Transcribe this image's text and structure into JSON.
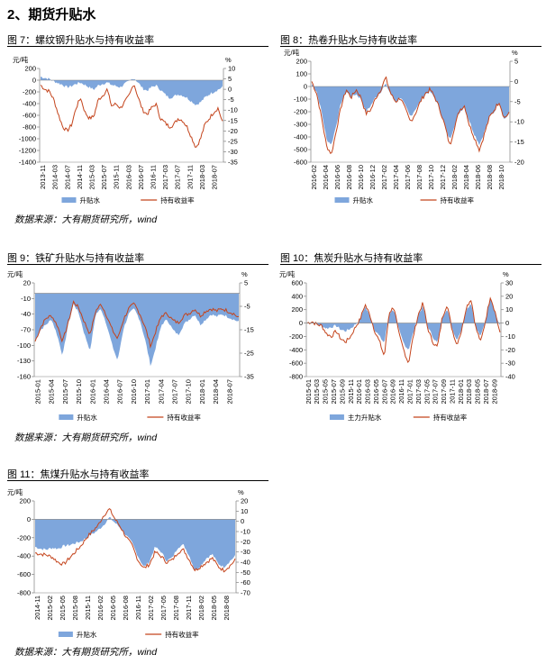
{
  "section_title": "2、期货升贴水",
  "colors": {
    "basis": "#7ea6dc",
    "yield": "#c4441c",
    "axis": "#808080"
  },
  "panels": [
    {
      "title": "图 7：螺纹钢升贴水与持有收益率",
      "source": "数据来源：大有期货研究所，wind"
    },
    {
      "title": "图 8：热卷升贴水与持有收益率"
    },
    {
      "title": "图 9：铁矿升贴水与持有收益率",
      "source": "数据来源：大有期货研究所，wind"
    },
    {
      "title": "图 10：焦炭升贴水与持有收益率"
    },
    {
      "title": "图 11：焦煤升贴水与持有收益率",
      "source": "数据来源：大有期货研究所，wind"
    }
  ],
  "chart_data": [
    {
      "type": "area",
      "left_unit": "元/吨",
      "right_unit": "%",
      "left_ticks": [
        200,
        0,
        -200,
        -400,
        -600,
        -800,
        -1000,
        -1200,
        -1400
      ],
      "right_ticks": [
        10,
        5,
        0,
        -5,
        -10,
        -15,
        -20,
        -25,
        -30,
        -35
      ],
      "ylim_left": [
        -1400,
        200
      ],
      "ylim_right": [
        -35,
        10
      ],
      "x_ticks": [
        "2013-11",
        "2014-03",
        "2014-07",
        "2014-11",
        "2015-03",
        "2015-07",
        "2015-11",
        "2016-03",
        "2016-07",
        "2016-11",
        "2017-03",
        "2017-07",
        "2017-11",
        "2018-03",
        "2018-07"
      ],
      "legend": [
        "升贴水",
        "持有收益率"
      ],
      "series": [
        {
          "name": "升贴水",
          "kind": "area",
          "axis": "left",
          "values": [
            60,
            40,
            20,
            -20,
            -50,
            -80,
            -120,
            -100,
            -60,
            -40,
            -80,
            -120,
            -160,
            -90,
            -60,
            -40,
            -80,
            -100,
            -120,
            -60,
            -20,
            40,
            -40,
            -140,
            -180,
            -120,
            -90,
            -160,
            -240,
            -300,
            -280,
            -240,
            -260,
            -300,
            -360,
            -420,
            -380,
            -300,
            -240,
            -200,
            -160,
            -120
          ]
        },
        {
          "name": "持有收益率",
          "kind": "line",
          "axis": "right",
          "values": [
            2,
            0,
            -1,
            -5,
            -12,
            -18,
            -20,
            -17,
            -9,
            -4,
            -11,
            -14,
            -13,
            -5,
            -3,
            0,
            -8,
            -7,
            -9,
            -6,
            -3,
            3,
            -4,
            -10,
            -12,
            -9,
            -7,
            -14,
            -16,
            -18,
            -17,
            -14,
            -15,
            -18,
            -23,
            -28,
            -24,
            -17,
            -14,
            -11,
            -9,
            -16
          ]
        }
      ]
    },
    {
      "type": "area",
      "left_unit": "元/吨",
      "right_unit": "%",
      "left_ticks": [
        200,
        100,
        0,
        -100,
        -200,
        -300,
        -400,
        -500,
        -600
      ],
      "right_ticks": [
        5,
        0,
        -5,
        -10,
        -15,
        -20
      ],
      "ylim_left": [
        -600,
        200
      ],
      "ylim_right": [
        -20,
        5
      ],
      "x_ticks": [
        "2016-02",
        "2016-04",
        "2016-06",
        "2016-08",
        "2016-10",
        "2016-12",
        "2017-02",
        "2017-04",
        "2017-06",
        "2017-08",
        "2017-10",
        "2017-12",
        "2018-02",
        "2018-04",
        "2018-06",
        "2018-08",
        "2018-10"
      ],
      "legend": [
        "升贴水",
        "持有收益率"
      ],
      "series": [
        {
          "name": "升贴水",
          "kind": "area",
          "axis": "left",
          "values": [
            20,
            -40,
            -200,
            -420,
            -460,
            -300,
            -120,
            -40,
            -80,
            -60,
            -100,
            -200,
            -150,
            -80,
            -40,
            20,
            -60,
            -120,
            -80,
            -160,
            -240,
            -180,
            -120,
            -60,
            -40,
            -100,
            -180,
            -320,
            -420,
            -300,
            -200,
            -160,
            -280,
            -380,
            -460,
            -360,
            -240,
            -200,
            -120,
            -260,
            -220
          ]
        },
        {
          "name": "持有收益率",
          "kind": "line",
          "axis": "right",
          "values": [
            0,
            -3,
            -9,
            -16,
            -18,
            -12,
            -6,
            -2,
            -4,
            -2,
            -4,
            -8,
            -7,
            -4,
            -2,
            1,
            -3,
            -5,
            -4,
            -7,
            -10,
            -8,
            -5,
            -3,
            -2,
            -4,
            -7,
            -11,
            -16,
            -11,
            -7,
            -6,
            -11,
            -14,
            -17,
            -13,
            -9,
            -7,
            -5,
            -9,
            -8
          ]
        }
      ]
    },
    {
      "type": "area",
      "left_unit": "元/吨",
      "right_unit": "%",
      "left_ticks": [
        20,
        -10,
        -40,
        -70,
        -100,
        -130,
        -160
      ],
      "right_ticks": [
        5,
        -5,
        -15,
        -25,
        -35
      ],
      "ylim_left": [
        -160,
        20
      ],
      "ylim_right": [
        -35,
        5
      ],
      "x_ticks": [
        "2015-01",
        "2015-04",
        "2015-07",
        "2015-10",
        "2016-01",
        "2016-04",
        "2016-07",
        "2016-10",
        "2017-01",
        "2017-04",
        "2017-07",
        "2017-10",
        "2018-01",
        "2018-04",
        "2018-07"
      ],
      "legend": [
        "升贴水",
        "持有收益率"
      ],
      "series": [
        {
          "name": "升贴水",
          "kind": "area",
          "axis": "left",
          "values": [
            -90,
            -70,
            -60,
            -50,
            -80,
            -120,
            -60,
            -20,
            -40,
            -80,
            -110,
            -40,
            -30,
            -60,
            -100,
            -130,
            -70,
            -40,
            -30,
            -50,
            -90,
            -140,
            -100,
            -60,
            -50,
            -70,
            -80,
            -60,
            -50,
            -40,
            -60,
            -50,
            -40,
            -45,
            -40,
            -45,
            -50,
            -55
          ]
        },
        {
          "name": "持有收益率",
          "kind": "line",
          "axis": "right",
          "values": [
            -20,
            -14,
            -10,
            -9,
            -13,
            -20,
            -12,
            -3,
            -6,
            -12,
            -17,
            -7,
            -4,
            -9,
            -15,
            -19,
            -11,
            -6,
            -4,
            -8,
            -14,
            -22,
            -15,
            -9,
            -8,
            -11,
            -12,
            -9,
            -8,
            -6,
            -9,
            -7,
            -6,
            -7,
            -6,
            -7,
            -8,
            -10
          ]
        }
      ]
    },
    {
      "type": "area",
      "left_unit": "元/吨",
      "right_unit": "%",
      "left_ticks": [
        600,
        400,
        200,
        0,
        -200,
        -400,
        -600,
        -800
      ],
      "right_ticks": [
        30,
        20,
        10,
        0,
        -10,
        -20,
        -30,
        -40
      ],
      "ylim_left": [
        -800,
        600
      ],
      "ylim_right": [
        -40,
        30
      ],
      "x_ticks": [
        "2015-01",
        "2015-03",
        "2015-05",
        "2015-07",
        "2015-09",
        "2015-11",
        "2016-01",
        "2016-03",
        "2016-05",
        "2016-07",
        "2016-09",
        "2016-11",
        "2017-01",
        "2017-03",
        "2017-05",
        "2017-07",
        "2017-09",
        "2017-11",
        "2018-01",
        "2018-03",
        "2018-05",
        "2018-07",
        "2018-09"
      ],
      "legend": [
        "主力升贴水",
        "持有收益率"
      ],
      "series": [
        {
          "name": "主力升贴水",
          "kind": "area",
          "axis": "left",
          "values": [
            0,
            20,
            -20,
            -40,
            -80,
            -60,
            -40,
            -100,
            -120,
            -80,
            -20,
            60,
            250,
            100,
            -100,
            -200,
            -300,
            150,
            200,
            -100,
            -300,
            -400,
            -150,
            120,
            250,
            -50,
            -200,
            -300,
            80,
            220,
            -60,
            -250,
            -100,
            200,
            300,
            -80,
            -200,
            50,
            400,
            150,
            -50
          ]
        },
        {
          "name": "持有收益率",
          "kind": "line",
          "axis": "right",
          "values": [
            0,
            1,
            -1,
            -2,
            -8,
            -10,
            -6,
            -12,
            -14,
            -10,
            -3,
            3,
            14,
            6,
            -6,
            -14,
            -25,
            8,
            12,
            -8,
            -20,
            -30,
            -10,
            6,
            15,
            -4,
            -14,
            -18,
            4,
            14,
            -4,
            -16,
            -6,
            12,
            18,
            -4,
            -14,
            2,
            20,
            8,
            -8
          ]
        }
      ]
    },
    {
      "type": "area",
      "left_unit": "元/吨",
      "right_unit": "%",
      "left_ticks": [
        200,
        0,
        -200,
        -400,
        -600,
        -800
      ],
      "right_ticks": [
        20,
        10,
        0,
        -10,
        -20,
        -30,
        -40,
        -50,
        -60,
        -70
      ],
      "ylim_left": [
        -800,
        200
      ],
      "ylim_right": [
        -70,
        20
      ],
      "x_ticks": [
        "2014-11",
        "2015-02",
        "2015-05",
        "2015-08",
        "2015-11",
        "2016-02",
        "2016-05",
        "2016-08",
        "2016-11",
        "2017-02",
        "2017-05",
        "2017-08",
        "2017-11",
        "2018-02",
        "2018-05",
        "2018-08"
      ],
      "legend": [
        "升贴水",
        "持有收益率"
      ],
      "series": [
        {
          "name": "升贴水",
          "kind": "area",
          "axis": "left",
          "values": [
            -300,
            -320,
            -330,
            -310,
            -320,
            -290,
            -280,
            -260,
            -240,
            -200,
            -160,
            -120,
            -60,
            20,
            -40,
            -100,
            -180,
            -260,
            -400,
            -520,
            -460,
            -300,
            -350,
            -450,
            -420,
            -300,
            -280,
            -400,
            -560,
            -500,
            -420,
            -380,
            -480,
            -520,
            -460,
            -400
          ]
        },
        {
          "name": "持有收益率",
          "kind": "line",
          "axis": "right",
          "values": [
            -31,
            -32,
            -33,
            -35,
            -40,
            -42,
            -36,
            -30,
            -24,
            -16,
            -10,
            -4,
            6,
            12,
            2,
            -6,
            -16,
            -24,
            -38,
            -46,
            -42,
            -30,
            -34,
            -40,
            -38,
            -30,
            -28,
            -38,
            -48,
            -44,
            -40,
            -36,
            -44,
            -48,
            -44,
            -38
          ]
        }
      ]
    }
  ]
}
